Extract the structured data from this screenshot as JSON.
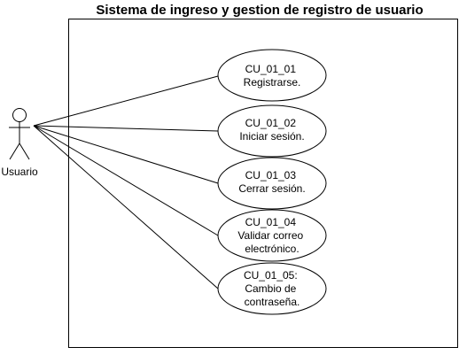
{
  "system": {
    "title": "Sistema de ingreso y gestion de registro de usuario"
  },
  "actor": {
    "name": "Usuario"
  },
  "use_cases": [
    {
      "lines": [
        "CU_01_01",
        "Registrarse."
      ]
    },
    {
      "lines": [
        "CU_01_02",
        "Iniciar sesión."
      ]
    },
    {
      "lines": [
        "CU_01_03",
        "Cerrar sesión."
      ]
    },
    {
      "lines": [
        "CU_01_04",
        "Validar correo",
        "electrónico."
      ]
    },
    {
      "lines": [
        "CU_01_05:",
        "Cambio de",
        "contraseña."
      ]
    }
  ],
  "colors": {
    "stroke": "#000000",
    "fill": "#ffffff"
  }
}
